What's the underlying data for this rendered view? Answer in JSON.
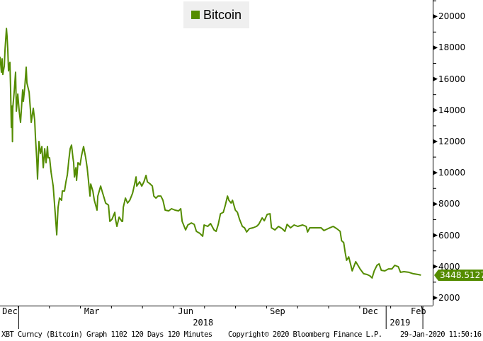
{
  "chart_data": {
    "type": "line",
    "title": "",
    "x_unit": "days since 2017-12-14",
    "xlim": [
      0,
      424
    ],
    "ylim": [
      1500,
      21050
    ],
    "grid": false,
    "legend_placement": "top-center",
    "yticks": [
      2000,
      4000,
      6000,
      8000,
      10000,
      12000,
      14000,
      16000,
      18000,
      20000
    ],
    "ytick_labels": [
      "2000",
      "4000",
      "6000",
      "8000",
      "10000",
      "12000",
      "14000",
      "16000",
      "18000",
      "20000"
    ],
    "month_ticks": [
      {
        "label": "Dec",
        "x": 9.7
      },
      {
        "label": "Mar",
        "x": 90
      },
      {
        "label": "Jun",
        "x": 182
      },
      {
        "label": "Sep",
        "x": 272
      },
      {
        "label": "Dec",
        "x": 363
      },
      {
        "label": "Feb",
        "x": 410
      }
    ],
    "year_labels": [
      {
        "label": "2018",
        "x": 199
      },
      {
        "label": "2019",
        "x": 392
      }
    ],
    "year_separators": [
      18,
      378,
      414
    ],
    "series": [
      {
        "name": "Bitcoin",
        "color": "#548c00",
        "last_value_label": "3448.5127",
        "x": [
          0,
          1.4,
          2.1,
          2.8,
          4.2,
          4.9,
          6.3,
          6.9,
          7.6,
          8.3,
          9.7,
          10.4,
          11.1,
          11.8,
          12.2,
          12.5,
          13.9,
          15.3,
          16,
          17.4,
          18.8,
          20.1,
          22.2,
          22.9,
          24.3,
          25.7,
          26.4,
          28.5,
          29.9,
          30.6,
          32.6,
          34,
          34.7,
          36.1,
          36.8,
          38.2,
          39.6,
          41,
          42.4,
          43.8,
          45.1,
          46.5,
          47.2,
          48.6,
          50,
          52.1,
          53.5,
          54.9,
          55.6,
          56.9,
          58.3,
          60.4,
          61.1,
          63.2,
          64.6,
          66,
          67.4,
          68.8,
          70.1,
          71.5,
          72.2,
          72.9,
          74.3,
          75,
          76.4,
          78.5,
          79.9,
          81.9,
          84,
          85.4,
          86.8,
          88.2,
          88.9,
          91,
          92.4,
          95.1,
          95.8,
          98.6,
          100,
          102.1,
          103.5,
          106.3,
          107.6,
          109.7,
          112.5,
          113.2,
          114.6,
          116.7,
          119.4,
          120.1,
          120.8,
          122.9,
          125,
          127.1,
          129.9,
          131.9,
          133.3,
          134,
          136.8,
          138.9,
          141,
          143.1,
          144.4,
          147.2,
          149.3,
          150.7,
          152.8,
          154.9,
          157.6,
          159.7,
          161.8,
          165.3,
          168.1,
          171.5,
          175,
          177.1,
          178.5,
          181.9,
          184,
          187.5,
          190.3,
          192.4,
          195.8,
          198.6,
          200,
          203.5,
          206.3,
          209.7,
          211.8,
          213.9,
          216,
          218.8,
          220.8,
          222.9,
          224.3,
          226.4,
          227.8,
          230.6,
          232.6,
          234.7,
          237.5,
          239.6,
          241.7,
          244.4,
          247.9,
          251.4,
          253.5,
          256.9,
          259,
          261.8,
          264.6,
          266,
          269.4,
          272.9,
          276.4,
          279.2,
          281.3,
          284.7,
          288.2,
          291.7,
          296.5,
          300,
          301.4,
          303.5,
          310.4,
          314.6,
          317.4,
          321.5,
          326.4,
          329.9,
          333.3,
          334.7,
          336.8,
          338.2,
          339.6,
          341.7,
          343.8,
          345.1,
          348.6,
          350.7,
          352.8,
          356.3,
          359.7,
          362.5,
          364.6,
          366.7,
          369.4,
          371.5,
          373.6,
          377.1,
          380.6,
          384,
          386.8,
          390.3,
          392.4,
          395.8,
          400.7,
          404.9,
          409.7,
          412.5
        ],
        "values": [
          17420,
          16430,
          17290,
          16290,
          16840,
          17880,
          19230,
          18780,
          17880,
          16520,
          17060,
          15300,
          12900,
          14260,
          11990,
          14120,
          15160,
          16430,
          13940,
          15030,
          13940,
          13220,
          15300,
          14570,
          15480,
          16750,
          15750,
          15160,
          13940,
          13220,
          14120,
          13350,
          12310,
          10780,
          9600,
          12000,
          11230,
          11680,
          10320,
          11540,
          10640,
          11680,
          10960,
          10960,
          10050,
          9150,
          7930,
          6700,
          6030,
          7790,
          8380,
          8240,
          8830,
          8830,
          9420,
          9870,
          10780,
          11540,
          11770,
          10960,
          10640,
          9730,
          10320,
          9510,
          10640,
          10500,
          11090,
          11680,
          10960,
          10320,
          9420,
          8510,
          9280,
          8830,
          8240,
          7610,
          8510,
          9150,
          8830,
          8380,
          8060,
          7930,
          6890,
          7020,
          7470,
          7020,
          6570,
          7160,
          6890,
          6890,
          7790,
          8380,
          8060,
          8240,
          8690,
          9280,
          9730,
          9150,
          9420,
          9150,
          9420,
          9830,
          9420,
          9280,
          9150,
          8510,
          8380,
          8510,
          8510,
          8240,
          7610,
          7560,
          7700,
          7610,
          7560,
          7700,
          6890,
          6340,
          6660,
          6790,
          6700,
          6250,
          6120,
          5940,
          6660,
          6570,
          6750,
          6340,
          6250,
          6700,
          7380,
          7470,
          7930,
          8510,
          8240,
          8060,
          8240,
          7610,
          7470,
          7020,
          6570,
          6480,
          6210,
          6430,
          6480,
          6570,
          6700,
          7110,
          6930,
          7340,
          7380,
          6480,
          6340,
          6570,
          6430,
          6250,
          6700,
          6480,
          6660,
          6570,
          6660,
          6570,
          6210,
          6480,
          6480,
          6480,
          6300,
          6430,
          6570,
          6430,
          6250,
          5660,
          5530,
          4900,
          4400,
          4620,
          4080,
          3720,
          4310,
          4080,
          3850,
          3540,
          3490,
          3400,
          3270,
          3720,
          4080,
          4170,
          3760,
          3720,
          3850,
          3850,
          4080,
          3990,
          3630,
          3670,
          3630,
          3540,
          3490,
          3450
        ]
      }
    ]
  },
  "footer": {
    "left": "XBT Curncy (Bitcoin) Graph 1102 120 Days 120 Minutes",
    "center": "Copyright© 2020 Bloomberg Finance L.P.",
    "right": "29-Jan-2020 11:50:16"
  }
}
